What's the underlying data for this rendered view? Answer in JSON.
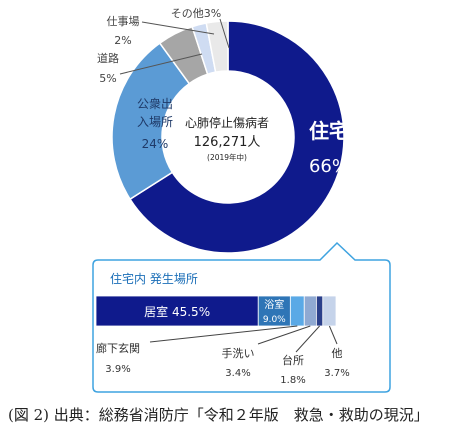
{
  "chart_data": [
    {
      "type": "pie",
      "title": "心肺停止傷病者",
      "total_value": "126,271人",
      "total_note": "(2019年中)",
      "series": [
        {
          "name": "住宅",
          "value": 66,
          "display_name": "住宅",
          "display_value": "66%",
          "color": "#0f1a8c"
        },
        {
          "name": "公衆出入場所",
          "value": 24,
          "display_name": "公衆出入場所",
          "display_value": "24%",
          "color": "#5b9bd5"
        },
        {
          "name": "道路",
          "value": 5,
          "display_name": "道路",
          "display_value": "5%",
          "color": "#a6a6a6"
        },
        {
          "name": "仕事場",
          "value": 2,
          "display_name": "仕事場",
          "display_value": "2%",
          "color": "#cfdcf2"
        },
        {
          "name": "その他",
          "value": 3,
          "display_name": "その他3%",
          "display_value": "",
          "color": "#e9e9e9"
        }
      ]
    },
    {
      "type": "bar",
      "title": "住宅内 発生場所",
      "orientation": "horizontal-stacked",
      "series": [
        {
          "name": "居室",
          "value": 45.5,
          "display": "居室 45.5%",
          "color": "#0f1a8c"
        },
        {
          "name": "浴室",
          "value": 9.0,
          "display": "9.0%",
          "color": "#2e75b6"
        },
        {
          "name": "廊下玄関",
          "value": 3.9,
          "display": "3.9%",
          "color": "#5aa9e6"
        },
        {
          "name": "手洗い",
          "value": 3.4,
          "display": "3.4%",
          "color": "#8fa9d2"
        },
        {
          "name": "台所",
          "value": 1.8,
          "display": "1.8%",
          "color": "#2a3f8a"
        },
        {
          "name": "他",
          "value": 3.7,
          "display": "3.7%",
          "color": "#c5d3ea"
        }
      ]
    }
  ],
  "caption": "(図 2)  出典：総務省消防庁「令和２年版　救急・救助の現況」"
}
